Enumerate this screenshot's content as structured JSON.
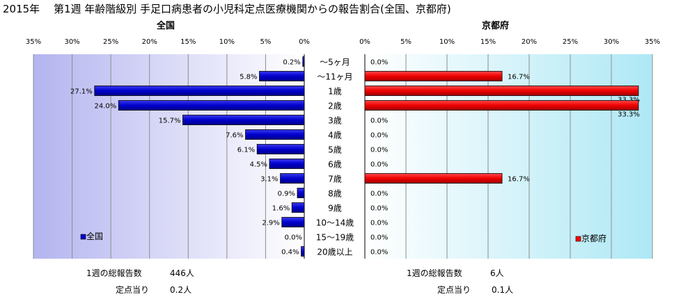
{
  "title": "2015年　 第1週 年齢階級別 手足口病患者の小児科定点医療機関からの報告割合(全国、京都府)",
  "chart_data": [
    {
      "type": "bar",
      "title": "全国",
      "categories": [
        "～5ヶ月",
        "～11ヶ月",
        "1歳",
        "2歳",
        "3歳",
        "4歳",
        "5歳",
        "6歳",
        "7歳",
        "8歳",
        "9歳",
        "10～14歳",
        "15～19歳",
        "20歳以上"
      ],
      "series": [
        {
          "name": "全国",
          "values": [
            0.2,
            5.8,
            27.1,
            24.0,
            15.7,
            7.6,
            6.1,
            4.5,
            3.1,
            0.9,
            1.6,
            2.9,
            0.0,
            0.4
          ],
          "color": "#0000cc"
        }
      ],
      "value_labels": [
        "0.2%",
        "5.8%",
        "27.1%",
        "24.0%",
        "15.7%",
        "7.6%",
        "6.1%",
        "4.5%",
        "3.1%",
        "0.9%",
        "1.6%",
        "2.9%",
        "0.0%",
        "0.4%"
      ],
      "xlim": [
        0,
        35
      ],
      "ticks": [
        "0%",
        "5%",
        "10%",
        "15%",
        "20%",
        "25%",
        "30%",
        "35%"
      ],
      "orientation": "horizontal-reversed",
      "legend": "bottom-left",
      "grid": true
    },
    {
      "type": "bar",
      "title": "京都府",
      "categories": [
        "～5ヶ月",
        "～11ヶ月",
        "1歳",
        "2歳",
        "3歳",
        "4歳",
        "5歳",
        "6歳",
        "7歳",
        "8歳",
        "9歳",
        "10～14歳",
        "15～19歳",
        "20歳以上"
      ],
      "series": [
        {
          "name": "京都府",
          "values": [
            0.0,
            16.7,
            33.3,
            33.3,
            0.0,
            0.0,
            0.0,
            0.0,
            16.7,
            0.0,
            0.0,
            0.0,
            0.0,
            0.0
          ],
          "color": "#ff0000"
        }
      ],
      "value_labels": [
        "0.0%",
        "16.7%",
        "33.3%",
        "33.3%",
        "0.0%",
        "0.0%",
        "0.0%",
        "0.0%",
        "16.7%",
        "0.0%",
        "0.0%",
        "0.0%",
        "0.0%",
        "0.0%"
      ],
      "xlim": [
        0,
        35
      ],
      "ticks": [
        "0%",
        "5%",
        "10%",
        "15%",
        "20%",
        "25%",
        "30%",
        "35%"
      ],
      "orientation": "horizontal",
      "legend": "bottom-right",
      "grid": true
    }
  ],
  "footer": {
    "national": {
      "total_label": "1週の総報告数",
      "total_value": "446人",
      "per_label": "定点当り",
      "per_value": "0.2人"
    },
    "kyoto": {
      "total_label": "1週の総報告数",
      "total_value": "6人",
      "per_label": "定点当り",
      "per_value": "0.1人"
    }
  }
}
